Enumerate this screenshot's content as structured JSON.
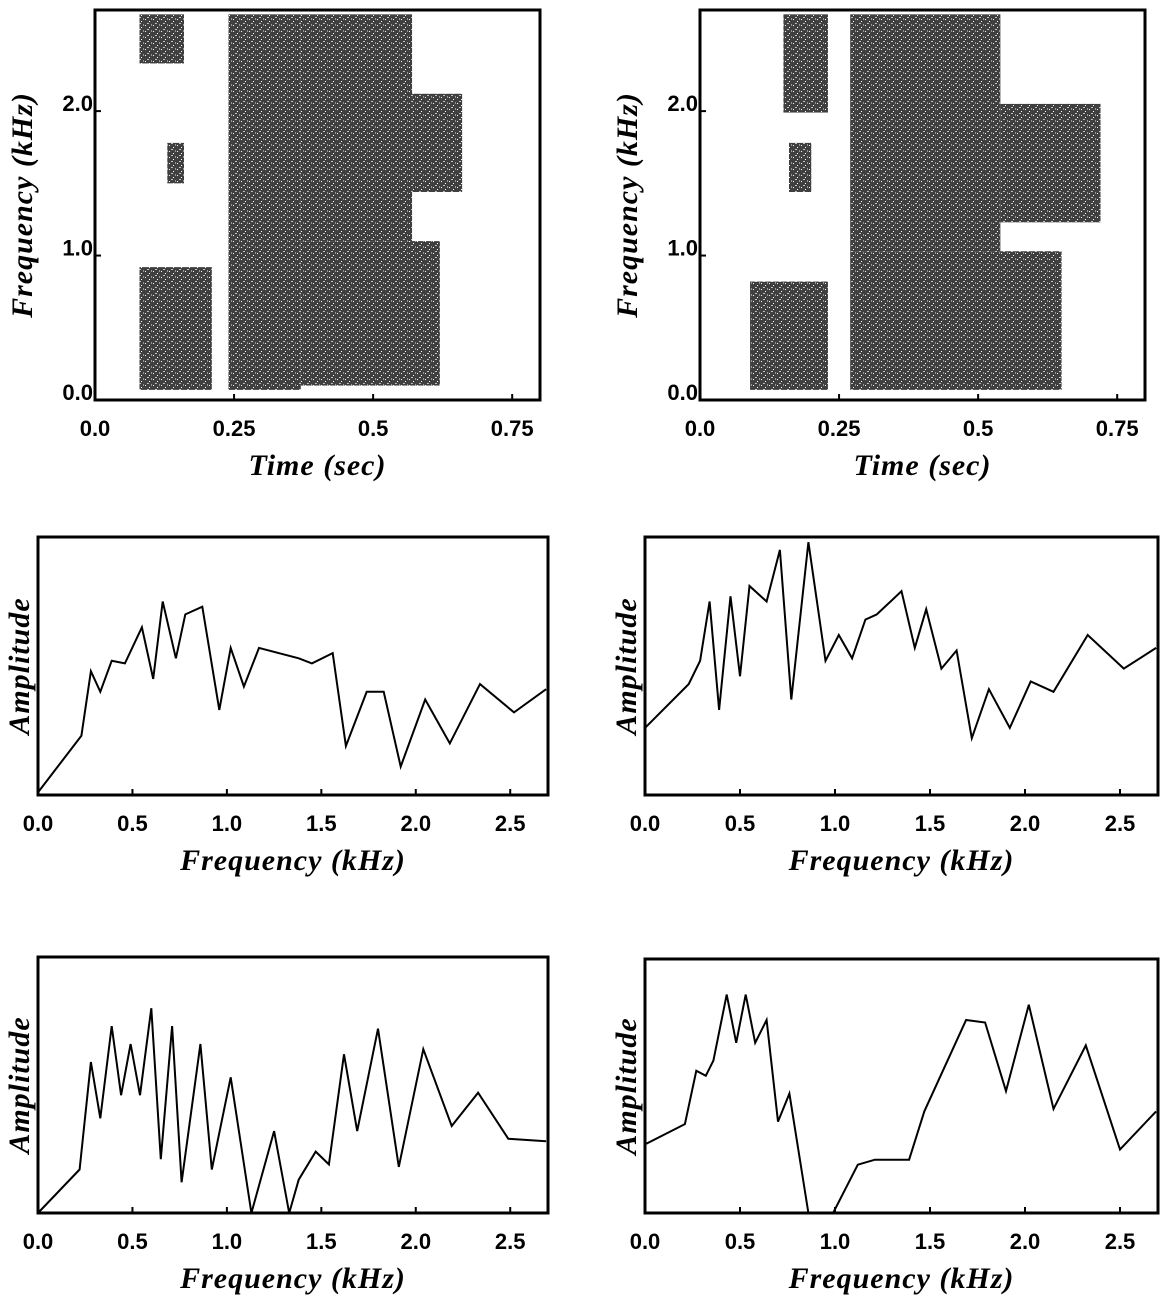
{
  "chart_data": [
    {
      "type": "spectrogram",
      "x_label": "Time (sec)",
      "y_label": "Frequency (kHz)",
      "xlim": [
        0,
        0.8
      ],
      "ylim": [
        0,
        2.7
      ],
      "xticks": [
        {
          "value": 0,
          "label": "0.0"
        },
        0.25,
        0.5,
        0.75
      ],
      "yticks": [
        {
          "value": 0,
          "label": "0.0"
        },
        {
          "value": 1,
          "label": "1.0"
        },
        {
          "value": 2,
          "label": "2.0"
        }
      ],
      "regions": [
        [
          0.08,
          0.21,
          0.07,
          0.92
        ],
        [
          0.13,
          0.16,
          1.5,
          1.78
        ],
        [
          0.08,
          0.16,
          2.33,
          2.67
        ],
        [
          0.24,
          0.37,
          0.07,
          2.67
        ],
        [
          0.37,
          0.62,
          0.1,
          1.1
        ],
        [
          0.37,
          0.57,
          1.1,
          2.67
        ],
        [
          0.57,
          0.66,
          1.44,
          2.12
        ]
      ]
    },
    {
      "type": "spectrogram",
      "x_label": "Time (sec)",
      "y_label": "Frequency (kHz)",
      "xlim": [
        0,
        0.8
      ],
      "ylim": [
        0,
        2.7
      ],
      "xticks": [
        {
          "value": 0,
          "label": "0.0"
        },
        0.25,
        0.5,
        0.75
      ],
      "yticks": [
        {
          "value": 0,
          "label": "0.0"
        },
        {
          "value": 1,
          "label": "1.0"
        },
        {
          "value": 2,
          "label": "2.0"
        }
      ],
      "regions": [
        [
          0.09,
          0.23,
          0.07,
          0.82
        ],
        [
          0.16,
          0.2,
          1.44,
          1.78
        ],
        [
          0.15,
          0.23,
          1.99,
          2.67
        ],
        [
          0.27,
          0.65,
          0.07,
          1.03
        ],
        [
          0.27,
          0.54,
          1.03,
          2.67
        ],
        [
          0.54,
          0.72,
          1.23,
          2.05
        ]
      ]
    },
    {
      "type": "line",
      "x_label": "Frequency (kHz)",
      "y_label": "Amplitude",
      "xlim": [
        0,
        2.7
      ],
      "ylim": [
        0,
        1
      ],
      "xticks": [
        {
          "value": 0,
          "label": "0.0"
        },
        0.5,
        {
          "value": 1,
          "label": "1.0"
        },
        1.5,
        {
          "value": 2,
          "label": "2.0"
        },
        2.5
      ],
      "x": [
        0,
        0.23,
        0.28,
        0.33,
        0.39,
        0.46,
        0.55,
        0.61,
        0.66,
        0.73,
        0.78,
        0.87,
        0.96,
        1.02,
        1.09,
        1.17,
        1.38,
        1.45,
        1.56,
        1.63,
        1.74,
        1.83,
        1.92,
        2.05,
        2.18,
        2.34,
        2.52,
        2.69
      ],
      "values": [
        0.01,
        0.23,
        0.48,
        0.4,
        0.52,
        0.51,
        0.65,
        0.45,
        0.75,
        0.53,
        0.7,
        0.73,
        0.33,
        0.57,
        0.42,
        0.57,
        0.53,
        0.51,
        0.55,
        0.19,
        0.4,
        0.4,
        0.11,
        0.37,
        0.2,
        0.43,
        0.32,
        0.41
      ]
    },
    {
      "type": "line",
      "x_label": "Frequency (kHz)",
      "y_label": "Amplitude",
      "xlim": [
        0,
        2.7
      ],
      "ylim": [
        0,
        1
      ],
      "xticks": [
        {
          "value": 0,
          "label": "0.0"
        },
        0.5,
        {
          "value": 1,
          "label": "1.0"
        },
        1.5,
        {
          "value": 2,
          "label": "2.0"
        },
        2.5
      ],
      "x": [
        0,
        0.23,
        0.29,
        0.34,
        0.39,
        0.45,
        0.5,
        0.55,
        0.64,
        0.71,
        0.77,
        0.86,
        0.95,
        1.02,
        1.09,
        1.16,
        1.22,
        1.35,
        1.42,
        1.48,
        1.56,
        1.64,
        1.72,
        1.81,
        1.92,
        2.03,
        2.15,
        2.33,
        2.52,
        2.69
      ],
      "values": [
        0.26,
        0.43,
        0.52,
        0.75,
        0.33,
        0.77,
        0.46,
        0.81,
        0.75,
        0.95,
        0.37,
        0.98,
        0.52,
        0.62,
        0.53,
        0.68,
        0.7,
        0.79,
        0.57,
        0.72,
        0.49,
        0.56,
        0.22,
        0.41,
        0.26,
        0.44,
        0.4,
        0.62,
        0.49,
        0.57
      ]
    },
    {
      "type": "line",
      "x_label": "Frequency (kHz)",
      "y_label": "Amplitude",
      "xlim": [
        0,
        2.7
      ],
      "ylim": [
        0,
        1
      ],
      "xticks": [
        {
          "value": 0,
          "label": "0.0"
        },
        0.5,
        {
          "value": 1,
          "label": "1.0"
        },
        1.5,
        {
          "value": 2,
          "label": "2.0"
        },
        2.5
      ],
      "x": [
        0,
        0.22,
        0.28,
        0.33,
        0.39,
        0.44,
        0.49,
        0.54,
        0.6,
        0.65,
        0.71,
        0.76,
        0.86,
        0.92,
        1.02,
        1.13,
        1.25,
        1.33,
        1.38,
        1.47,
        1.54,
        1.62,
        1.69,
        1.8,
        1.91,
        2.04,
        2.19,
        2.33,
        2.49,
        2.69
      ],
      "values": [
        0,
        0.17,
        0.59,
        0.37,
        0.73,
        0.46,
        0.66,
        0.46,
        0.8,
        0.21,
        0.73,
        0.12,
        0.66,
        0.17,
        0.53,
        0,
        0.32,
        0,
        0.13,
        0.24,
        0.19,
        0.62,
        0.32,
        0.72,
        0.18,
        0.64,
        0.34,
        0.47,
        0.29,
        0.28
      ]
    },
    {
      "type": "line",
      "x_label": "Frequency (kHz)",
      "y_label": "Amplitude",
      "xlim": [
        0,
        2.7
      ],
      "ylim": [
        0,
        1
      ],
      "xticks": [
        {
          "value": 0,
          "label": "0.0"
        },
        0.5,
        {
          "value": 1,
          "label": "1.0"
        },
        1.5,
        {
          "value": 2,
          "label": "2.0"
        },
        2.5
      ],
      "x": [
        0,
        0.21,
        0.27,
        0.32,
        0.36,
        0.43,
        0.48,
        0.53,
        0.58,
        0.64,
        0.7,
        0.76,
        0.86,
        0.99,
        1.12,
        1.21,
        1.39,
        1.47,
        1.69,
        1.79,
        1.9,
        2.02,
        2.15,
        2.32,
        2.5,
        2.69
      ],
      "values": [
        0.27,
        0.35,
        0.56,
        0.54,
        0.6,
        0.86,
        0.67,
        0.86,
        0.67,
        0.76,
        0.36,
        0.47,
        0,
        0,
        0.19,
        0.21,
        0.21,
        0.4,
        0.76,
        0.75,
        0.48,
        0.82,
        0.41,
        0.66,
        0.25,
        0.4
      ]
    }
  ]
}
